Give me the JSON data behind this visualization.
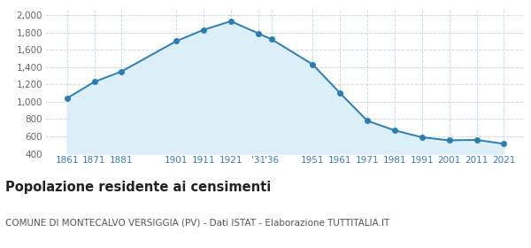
{
  "years": [
    1861,
    1871,
    1881,
    1901,
    1911,
    1921,
    1931,
    1936,
    1951,
    1961,
    1971,
    1981,
    1991,
    2001,
    2011,
    2021
  ],
  "population": [
    1040,
    1230,
    1350,
    1700,
    1830,
    1930,
    1790,
    1720,
    1430,
    1100,
    780,
    670,
    590,
    555,
    560,
    515
  ],
  "x_tick_positions": [
    1861,
    1871,
    1881,
    1901,
    1911,
    1921,
    1931,
    1936,
    1951,
    1961,
    1971,
    1981,
    1991,
    2001,
    2011,
    2021
  ],
  "x_tick_labels": [
    "1861",
    "1871",
    "1881",
    "1901",
    "1911",
    "1921",
    "'31",
    "'36",
    "1951",
    "1961",
    "1971",
    "1981",
    "1991",
    "2001",
    "2011",
    "2021"
  ],
  "yticks": [
    400,
    600,
    800,
    1000,
    1200,
    1400,
    1600,
    1800,
    2000
  ],
  "ylim": [
    400,
    2060
  ],
  "xlim": [
    1853,
    2028
  ],
  "line_color": "#2a7db5",
  "fill_color": "#dceef8",
  "marker_color": "#2a7db5",
  "bg_color": "#ffffff",
  "grid_color": "#c8dce8",
  "xtick_color": "#3a7abf",
  "ytick_color": "#666666",
  "title": "Popolazione residente ai censimenti",
  "subtitle": "COMUNE DI MONTECALVO VERSIGGIA (PV) - Dati ISTAT - Elaborazione TUTTITALIA.IT",
  "title_fontsize": 10.5,
  "subtitle_fontsize": 7.5,
  "tick_fontsize": 7.5
}
